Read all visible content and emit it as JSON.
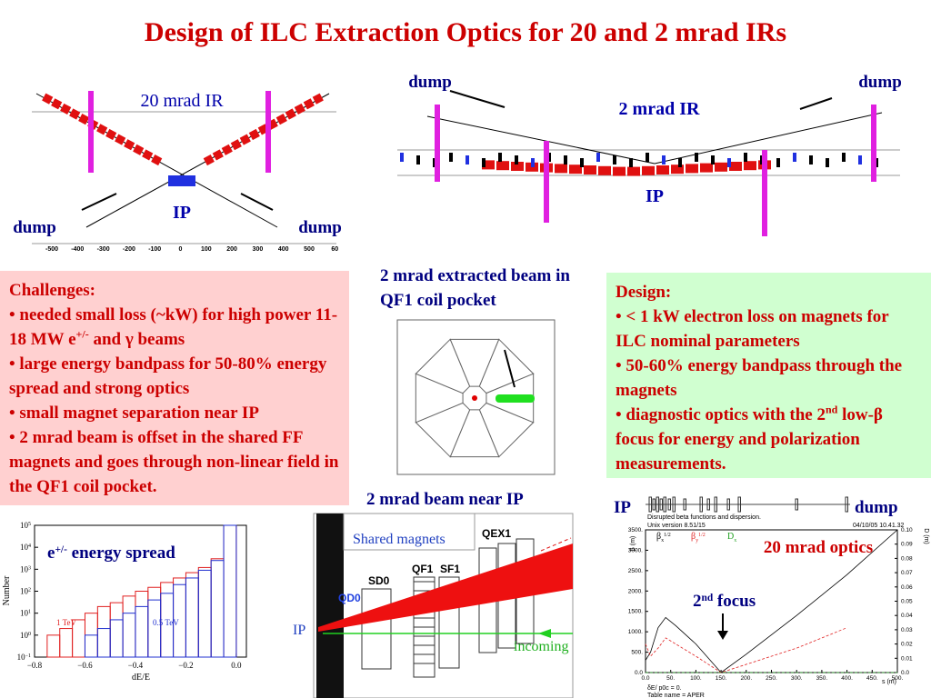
{
  "title": "Design of ILC Extraction Optics for 20 and 2 mrad IRs",
  "ir20": {
    "label": "20 mrad IR",
    "ip": "IP",
    "dump_left": "dump",
    "dump_right": "dump",
    "axis_ticks": [
      "-500",
      "-400",
      "-300",
      "-200",
      "-100",
      "0",
      "100",
      "200",
      "300",
      "400",
      "500",
      "60"
    ]
  },
  "ir2": {
    "label": "2 mrad IR",
    "ip": "IP",
    "dump_left": "dump",
    "dump_right": "dump"
  },
  "coil": {
    "caption": "2 mrad extracted beam in QF1 coil pocket"
  },
  "challenges": {
    "heading": "Challenges:",
    "bullets": [
      [
        {
          "text": "• needed small loss (~kW) for high power 11-18 MW e"
        },
        {
          "sup": "+/-"
        },
        {
          "text": " and γ beams"
        }
      ],
      [
        {
          "text": "• large energy bandpass for 50-80% energy spread and strong optics"
        }
      ],
      [
        {
          "text": "• small magnet separation near IP"
        }
      ],
      [
        {
          "text": "• 2 mrad beam is offset in the shared FF magnets and goes through non-linear field in the QF1 coil pocket."
        }
      ]
    ]
  },
  "design": {
    "heading": "Design:",
    "bullets": [
      [
        {
          "text": "• < 1 kW electron loss on magnets for ILC nominal parameters"
        }
      ],
      [
        {
          "text": "• 50-60% energy bandpass through the magnets"
        }
      ],
      [
        {
          "text": "• diagnostic optics with the 2"
        },
        {
          "sup": "nd"
        },
        {
          "text": " low-β focus for energy and polarization measurements."
        }
      ]
    ]
  },
  "beam": {
    "caption": "2 mrad beam near IP",
    "shared": "Shared magnets",
    "sd0": "SD0",
    "qf1": "QF1",
    "sf1": "SF1",
    "qex1": "QEX1",
    "qd0": "QD0",
    "ip": "IP",
    "incoming": "incoming"
  },
  "spread": {
    "type": "histogram",
    "title": [
      {
        "text": "e"
      },
      {
        "sup": "+/-"
      },
      {
        "text": " energy spread"
      }
    ],
    "xlabel": "dE/E",
    "ylabel": "Number",
    "log_y": true,
    "bins": [
      -0.8,
      -0.75,
      -0.7,
      -0.65,
      -0.6,
      -0.55,
      -0.5,
      -0.45,
      -0.4,
      -0.35,
      -0.3,
      -0.25,
      -0.2,
      -0.15,
      -0.1,
      -0.05,
      0.0
    ],
    "series": [
      {
        "name": "1 TeV",
        "color": "#e02020",
        "values": [
          null,
          1,
          2,
          5,
          10,
          20,
          30,
          60,
          100,
          150,
          250,
          400,
          700,
          1200,
          3000,
          100000
        ]
      },
      {
        "name": "0.5 TeV",
        "color": "#2030d0",
        "values": [
          null,
          null,
          null,
          null,
          1,
          2,
          5,
          10,
          20,
          40,
          80,
          200,
          400,
          900,
          2500,
          100000
        ]
      }
    ],
    "xlim": [
      -0.8,
      0.04
    ],
    "ylim": [
      0.1,
      100000
    ],
    "xticks": [
      {
        "value": -0.8,
        "label": "−0.8"
      },
      {
        "value": -0.6,
        "label": "−0.6"
      },
      {
        "value": -0.4,
        "label": "−0.4"
      },
      {
        "value": -0.2,
        "label": "−0.2"
      },
      {
        "value": 0,
        "label": "0.0"
      }
    ],
    "yticks": [
      {
        "value": 0.1,
        "label": "10",
        "exp": "−1"
      },
      {
        "value": 1,
        "label": "10",
        "exp": "0"
      },
      {
        "value": 10,
        "label": "10",
        "exp": "1"
      },
      {
        "value": 100,
        "label": "10",
        "exp": "2"
      },
      {
        "value": 1000,
        "label": "10",
        "exp": "3"
      },
      {
        "value": 10000,
        "label": "10",
        "exp": "4"
      },
      {
        "value": 100000,
        "label": "10",
        "exp": "5"
      }
    ]
  },
  "optics": {
    "type": "line",
    "ip": "IP",
    "dump": "dump",
    "title": "20 mrad optics",
    "focus": [
      {
        "text": "2"
      },
      {
        "sup": "nd"
      },
      {
        "text": " focus"
      }
    ],
    "plot_title": "Disrupted beta functions and dispersion.",
    "version": "Unix version 8.51/15",
    "date": "04/10/05  10.41.32",
    "xlabel": "s (m)",
    "ylabel": "β (m)",
    "y2label": "D (m)",
    "footer1": "δE/ p0c =  0.",
    "footer2": "Table name = APER",
    "x": [
      0,
      10,
      25,
      40,
      60,
      100,
      150,
      200,
      300,
      400,
      500
    ],
    "series": [
      {
        "name": "β",
        "sub": "x",
        "sup": "1/2",
        "color": "#000000",
        "dash": false,
        "values": [
          300,
          500,
          1100,
          1350,
          1150,
          700,
          0,
          450,
          1400,
          2400,
          3500
        ]
      },
      {
        "name": "β",
        "sub": "y",
        "sup": "1/2",
        "color": "#e02020",
        "dash": true,
        "values": [
          700,
          400,
          600,
          850,
          700,
          400,
          0,
          200,
          600,
          1100,
          null
        ]
      },
      {
        "name": "D",
        "sub": "x",
        "color": "#20a020",
        "dash": true,
        "axis": "y2",
        "values": [
          0,
          0,
          0,
          0,
          0,
          0,
          0,
          0,
          0,
          0,
          0
        ]
      }
    ],
    "xlim": [
      0,
      500
    ],
    "ylim": [
      0,
      3500
    ],
    "y2lim": [
      0,
      0.1
    ],
    "xticks": [
      {
        "value": 0,
        "label": "0.0"
      },
      {
        "value": 50,
        "label": "50."
      },
      {
        "value": 100,
        "label": "100."
      },
      {
        "value": 150,
        "label": "150."
      },
      {
        "value": 200,
        "label": "200."
      },
      {
        "value": 250,
        "label": "250."
      },
      {
        "value": 300,
        "label": "300."
      },
      {
        "value": 350,
        "label": "350."
      },
      {
        "value": 400,
        "label": "400."
      },
      {
        "value": 450,
        "label": "450."
      },
      {
        "value": 500,
        "label": "500."
      }
    ],
    "yticks": [
      {
        "value": 0,
        "label": "0.0"
      },
      {
        "value": 500,
        "label": "500."
      },
      {
        "value": 1000,
        "label": "1000."
      },
      {
        "value": 1500,
        "label": "1500."
      },
      {
        "value": 2000,
        "label": "2000."
      },
      {
        "value": 2500,
        "label": "2500."
      },
      {
        "value": 3000,
        "label": "3000."
      },
      {
        "value": 3500,
        "label": "3500."
      }
    ],
    "y2ticks": [
      {
        "value": 0,
        "label": "0.0"
      },
      {
        "value": 0.01,
        "label": "0.01"
      },
      {
        "value": 0.02,
        "label": "0.02"
      },
      {
        "value": 0.03,
        "label": "0.03"
      },
      {
        "value": 0.04,
        "label": "0.04"
      },
      {
        "value": 0.05,
        "label": "0.05"
      },
      {
        "value": 0.06,
        "label": "0.06"
      },
      {
        "value": 0.07,
        "label": "0.07"
      },
      {
        "value": 0.08,
        "label": "0.08"
      },
      {
        "value": 0.09,
        "label": "0.09"
      },
      {
        "value": 0.1,
        "label": "0.10"
      }
    ]
  }
}
